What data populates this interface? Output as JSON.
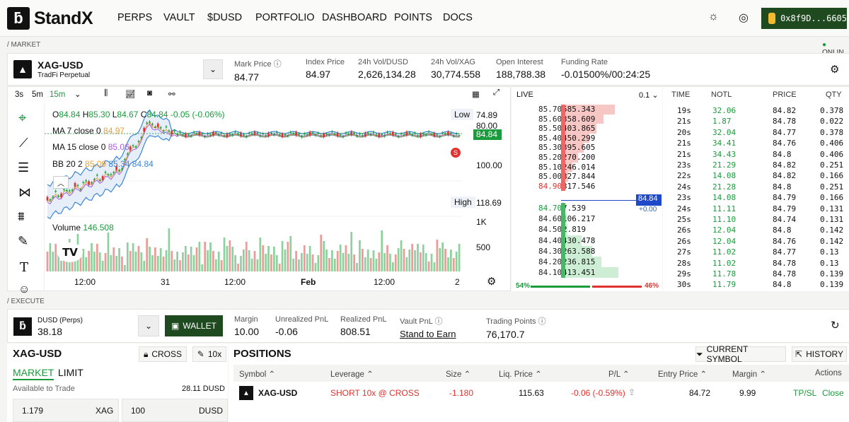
{
  "nav": {
    "brand": "StandX",
    "links": [
      "PERPS",
      "VAULT",
      "$DUSD",
      "PORTFOLIO",
      "DASHBOARD",
      "POINTS",
      "DOCS"
    ],
    "wallet": "0x8f9D...6605"
  },
  "sections": {
    "market": "/ MARKET",
    "execute": "/ EXECUTE",
    "online": "ONLIN"
  },
  "market": {
    "symbol": "XAG-USD",
    "subtitle": "TradFi Perpetual",
    "stats": [
      {
        "k": "Mark Price",
        "v": "84.77",
        "info": true
      },
      {
        "k": "Index Price",
        "v": "84.97"
      },
      {
        "k": "24h Vol/DUSD",
        "v": "2,626,134.28"
      },
      {
        "k": "24h Vol/XAG",
        "v": "30,774.558"
      },
      {
        "k": "Open Interest",
        "v": "188,788.38"
      },
      {
        "k": "Funding Rate",
        "v": "-0.01500%/00:24:25"
      }
    ]
  },
  "chart": {
    "intervals": [
      "3s",
      "5m",
      "15m"
    ],
    "active_interval": "15m",
    "ohlc": {
      "o": "84.84",
      "h": "85.30",
      "l": "84.67",
      "c": "84.84",
      "chg": "-0.05 (-0.06%)"
    },
    "ma7": {
      "label": "MA 7 close 0",
      "v": "84.97"
    },
    "ma15": {
      "label": "MA 15 close 0",
      "v": "85.06"
    },
    "bb": {
      "label": "BB 20 2",
      "v1": "85.09",
      "v2": "85.34",
      "v3": "84.84"
    },
    "volume": {
      "label": "Volume",
      "v": "146.508"
    },
    "low": {
      "label": "Low",
      "v": "74.89"
    },
    "high": {
      "label": "High",
      "v": "118.69"
    },
    "price_tag": "84.84",
    "axis": [
      "80.00",
      "100.00"
    ],
    "vol_axis": [
      "1K",
      "500"
    ],
    "xticks": [
      "12:00",
      "31",
      "12:00",
      "Feb",
      "12:00",
      "2"
    ],
    "marker": "S"
  },
  "orderbook": {
    "title": "LIVE",
    "step": "0.1",
    "asks": [
      [
        "85.70",
        "585.343",
        0.95
      ],
      [
        "85.60",
        "358.609",
        0.75
      ],
      [
        "85.50",
        "403.865",
        0.62
      ],
      [
        "85.40",
        "450.299",
        0.5
      ],
      [
        "85.30",
        "395.605",
        0.4
      ],
      [
        "85.20",
        "270.200",
        0.3
      ],
      [
        "85.10",
        "246.014",
        0.2
      ],
      [
        "85.00",
        "327.844",
        0.12
      ],
      [
        "84.90",
        "317.546",
        0.05
      ]
    ],
    "mid": "84.84",
    "mid_sub": "+0.00",
    "bids": [
      [
        "84.70",
        "7.539",
        0.02
      ],
      [
        "84.60",
        "106.217",
        0.06
      ],
      [
        "84.50",
        "2.819",
        0.07
      ],
      [
        "84.40",
        "430.478",
        0.22
      ],
      [
        "84.30",
        "263.588",
        0.34
      ],
      [
        "84.20",
        "236.815",
        0.44
      ],
      [
        "84.10",
        "413.451",
        0.62
      ]
    ],
    "buy_pct": "54%",
    "sell_pct": "46%"
  },
  "trades": {
    "headers": [
      "TIME",
      "NOTL",
      "PRICE",
      "QTY"
    ],
    "rows": [
      [
        "19s",
        "32.06",
        "84.82",
        "0.378",
        "r"
      ],
      [
        "21s",
        "1.87",
        "84.78",
        "0.022",
        "r"
      ],
      [
        "20s",
        "32.04",
        "84.77",
        "0.378",
        "r"
      ],
      [
        "21s",
        "34.41",
        "84.76",
        "0.406",
        "r"
      ],
      [
        "21s",
        "34.43",
        "84.8",
        "0.406",
        "r"
      ],
      [
        "23s",
        "21.29",
        "84.82",
        "0.251",
        "r"
      ],
      [
        "22s",
        "14.08",
        "84.82",
        "0.166",
        "r"
      ],
      [
        "24s",
        "21.28",
        "84.8",
        "0.251",
        "r"
      ],
      [
        "23s",
        "14.08",
        "84.79",
        "0.166",
        "r"
      ],
      [
        "24s",
        "11.11",
        "84.79",
        "0.131",
        "r"
      ],
      [
        "25s",
        "11.10",
        "84.74",
        "0.131",
        "r"
      ],
      [
        "26s",
        "12.04",
        "84.8",
        "0.142",
        "r"
      ],
      [
        "26s",
        "12.04",
        "84.76",
        "0.142",
        "r"
      ],
      [
        "27s",
        "11.02",
        "84.77",
        "0.13",
        "r"
      ],
      [
        "28s",
        "11.02",
        "84.78",
        "0.13",
        "r"
      ],
      [
        "29s",
        "11.78",
        "84.78",
        "0.139",
        "r"
      ],
      [
        "30s",
        "11.79",
        "84.8",
        "0.139",
        "r"
      ]
    ]
  },
  "account": {
    "name": "DUSD (Perps)",
    "balance": "38.18",
    "wallet_btn": "WALLET",
    "stats": [
      {
        "k": "Margin",
        "v": "10.00",
        "c": ""
      },
      {
        "k": "Unrealized PnL",
        "v": "-0.06",
        "c": "r"
      },
      {
        "k": "Realized PnL",
        "v": "808.51",
        "c": "g"
      },
      {
        "k": "Vault PnL",
        "v": "Stand to Earn",
        "c": "g",
        "info": true
      },
      {
        "k": "Trading Points",
        "v": "76,170.7",
        "c": "",
        "info": true
      }
    ]
  },
  "order": {
    "symbol": "XAG-USD",
    "cross": "CROSS",
    "lev": "10x",
    "tabs": [
      "MARKET",
      "LIMIT"
    ],
    "avail_label": "Available to Trade",
    "avail": "28.11 DUSD",
    "qty": "1.179",
    "qty_unit": "XAG",
    "amt": "100",
    "amt_unit": "DUSD"
  },
  "positions": {
    "title": "POSITIONS",
    "btn_symbol": "CURRENT SYMBOL",
    "btn_history": "HISTORY",
    "headers": [
      "Symbol",
      "Leverage",
      "Size",
      "Liq. Price",
      "P/L",
      "Entry Price",
      "Margin",
      "Actions"
    ],
    "row": {
      "symbol": "XAG-USD",
      "leverage": "SHORT 10x @ CROSS",
      "size": "-1.180",
      "liq": "115.63",
      "pl": "-0.06 (-0.59%)",
      "entry": "84.72",
      "margin": "9.99",
      "tpsl": "TP/SL",
      "close": "Close"
    }
  },
  "colors": {
    "green": "#1a9b3c",
    "red": "#e0332f",
    "dark_green": "#1f4a1f",
    "blue": "#2a67c9"
  }
}
